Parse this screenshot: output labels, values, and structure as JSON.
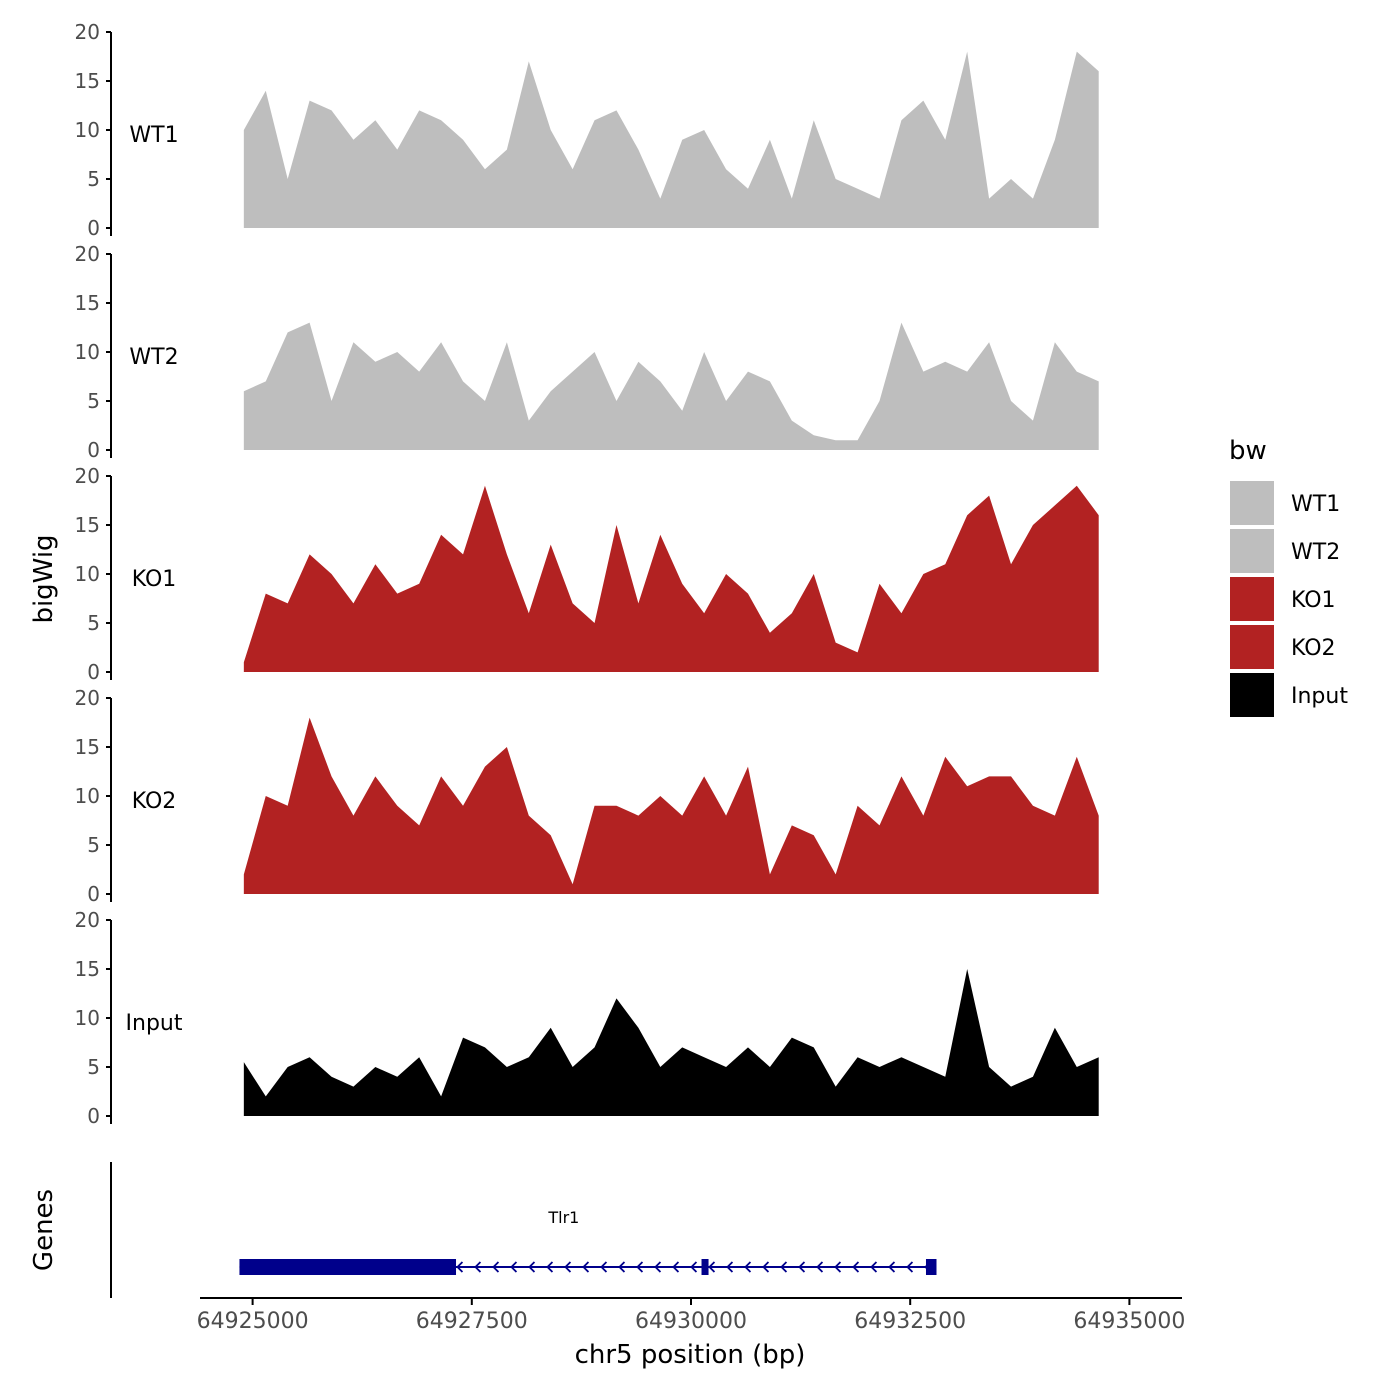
{
  "chart_data": {
    "type": "area",
    "xlabel": "chr5 position (bp)",
    "ylabel": "bigWig",
    "xlim": [
      64924400,
      64935600
    ],
    "ylim": [
      0,
      20
    ],
    "x_ticks": [
      64925000,
      64927500,
      64930000,
      64932500,
      64935000
    ],
    "x_tick_labels": [
      "64925000",
      "64927500",
      "64930000",
      "64932500",
      "64935000"
    ],
    "y_ticks": [
      0,
      5,
      10,
      15,
      20
    ],
    "y_tick_labels": [
      "0",
      "5",
      "10",
      "15",
      "20"
    ],
    "legend": {
      "title": "bw",
      "placement": "right",
      "entries": [
        {
          "label": "WT1",
          "color": "#bebebe"
        },
        {
          "label": "WT2",
          "color": "#bebebe"
        },
        {
          "label": "KO1",
          "color": "#b22222"
        },
        {
          "label": "KO2",
          "color": "#b22222"
        },
        {
          "label": "Input",
          "color": "#000000"
        }
      ]
    },
    "series": [
      {
        "name": "WT1",
        "color": "#bebebe",
        "x": [
          64924900,
          64925150,
          64925400,
          64925650,
          64925900,
          64926150,
          64926400,
          64926650,
          64926900,
          64927150,
          64927400,
          64927650,
          64927900,
          64928150,
          64928400,
          64928650,
          64928900,
          64929150,
          64929400,
          64929650,
          64929900,
          64930150,
          64930400,
          64930650,
          64930900,
          64931150,
          64931400,
          64931650,
          64931900,
          64932150,
          64932400,
          64932650,
          64932900,
          64933150,
          64933400,
          64933650,
          64933900,
          64934150,
          64934400,
          64934650
        ],
        "values": [
          10,
          14,
          5,
          13,
          12,
          9,
          11,
          8,
          12,
          11,
          9,
          6,
          8,
          17,
          10,
          6,
          11,
          12,
          8,
          3,
          9,
          10,
          6,
          4,
          9,
          3,
          11,
          5,
          4,
          3,
          11,
          13,
          9,
          18,
          3,
          5,
          3,
          9,
          18,
          16
        ]
      },
      {
        "name": "WT2",
        "color": "#bebebe",
        "x": [
          64924900,
          64925150,
          64925400,
          64925650,
          64925900,
          64926150,
          64926400,
          64926650,
          64926900,
          64927150,
          64927400,
          64927650,
          64927900,
          64928150,
          64928400,
          64928650,
          64928900,
          64929150,
          64929400,
          64929650,
          64929900,
          64930150,
          64930400,
          64930650,
          64930900,
          64931150,
          64931400,
          64931650,
          64931900,
          64932150,
          64932400,
          64932650,
          64932900,
          64933150,
          64933400,
          64933650,
          64933900,
          64934150,
          64934400,
          64934650
        ],
        "values": [
          6,
          7,
          12,
          13,
          5,
          11,
          9,
          10,
          8,
          11,
          7,
          5,
          11,
          3,
          6,
          8,
          10,
          5,
          9,
          7,
          4,
          10,
          5,
          8,
          7,
          3,
          1.5,
          1,
          1,
          5,
          13,
          8,
          9,
          8,
          11,
          5,
          3,
          11,
          8,
          7
        ]
      },
      {
        "name": "KO1",
        "color": "#b22222",
        "x": [
          64924900,
          64925150,
          64925400,
          64925650,
          64925900,
          64926150,
          64926400,
          64926650,
          64926900,
          64927150,
          64927400,
          64927650,
          64927900,
          64928150,
          64928400,
          64928650,
          64928900,
          64929150,
          64929400,
          64929650,
          64929900,
          64930150,
          64930400,
          64930650,
          64930900,
          64931150,
          64931400,
          64931650,
          64931900,
          64932150,
          64932400,
          64932650,
          64932900,
          64933150,
          64933400,
          64933650,
          64933900,
          64934150,
          64934400,
          64934650
        ],
        "values": [
          1,
          8,
          7,
          12,
          10,
          7,
          11,
          8,
          9,
          14,
          12,
          19,
          12,
          6,
          13,
          7,
          5,
          15,
          7,
          14,
          9,
          6,
          10,
          8,
          4,
          6,
          10,
          3,
          2,
          9,
          6,
          10,
          11,
          16,
          18,
          11,
          15,
          17,
          19,
          16
        ]
      },
      {
        "name": "KO2",
        "color": "#b22222",
        "x": [
          64924900,
          64925150,
          64925400,
          64925650,
          64925900,
          64926150,
          64926400,
          64926650,
          64926900,
          64927150,
          64927400,
          64927650,
          64927900,
          64928150,
          64928400,
          64928650,
          64928900,
          64929150,
          64929400,
          64929650,
          64929900,
          64930150,
          64930400,
          64930650,
          64930900,
          64931150,
          64931400,
          64931650,
          64931900,
          64932150,
          64932400,
          64932650,
          64932900,
          64933150,
          64933400,
          64933650,
          64933900,
          64934150,
          64934400,
          64934650
        ],
        "values": [
          2,
          10,
          9,
          18,
          12,
          8,
          12,
          9,
          7,
          12,
          9,
          13,
          15,
          8,
          6,
          1,
          9,
          9,
          8,
          10,
          8,
          12,
          8,
          13,
          2,
          7,
          6,
          2,
          9,
          7,
          12,
          8,
          14,
          11,
          12,
          12,
          9,
          8,
          14,
          8
        ]
      },
      {
        "name": "Input",
        "color": "#000000",
        "x": [
          64924900,
          64925150,
          64925400,
          64925650,
          64925900,
          64926150,
          64926400,
          64926650,
          64926900,
          64927150,
          64927400,
          64927650,
          64927900,
          64928150,
          64928400,
          64928650,
          64928900,
          64929150,
          64929400,
          64929650,
          64929900,
          64930150,
          64930400,
          64930650,
          64930900,
          64931150,
          64931400,
          64931650,
          64931900,
          64932150,
          64932400,
          64932650,
          64932900,
          64933150,
          64933400,
          64933650,
          64933900,
          64934150,
          64934400,
          64934650
        ],
        "values": [
          5.5,
          2,
          5,
          6,
          4,
          3,
          5,
          4,
          6,
          2,
          8,
          7,
          5,
          6,
          9,
          5,
          7,
          12,
          9,
          5,
          7,
          6,
          5,
          7,
          5,
          8,
          7,
          3,
          6,
          5,
          6,
          5,
          4,
          15,
          5,
          3,
          4,
          9,
          5,
          6
        ]
      }
    ],
    "gene_track": {
      "ylabel": "Genes",
      "gene_name": "Tlr1",
      "strand": "-",
      "start": 64924850,
      "end": 64932800,
      "exons": [
        [
          64924850,
          64927320
        ],
        [
          64930120,
          64930200
        ],
        [
          64932680,
          64932800
        ]
      ]
    }
  }
}
